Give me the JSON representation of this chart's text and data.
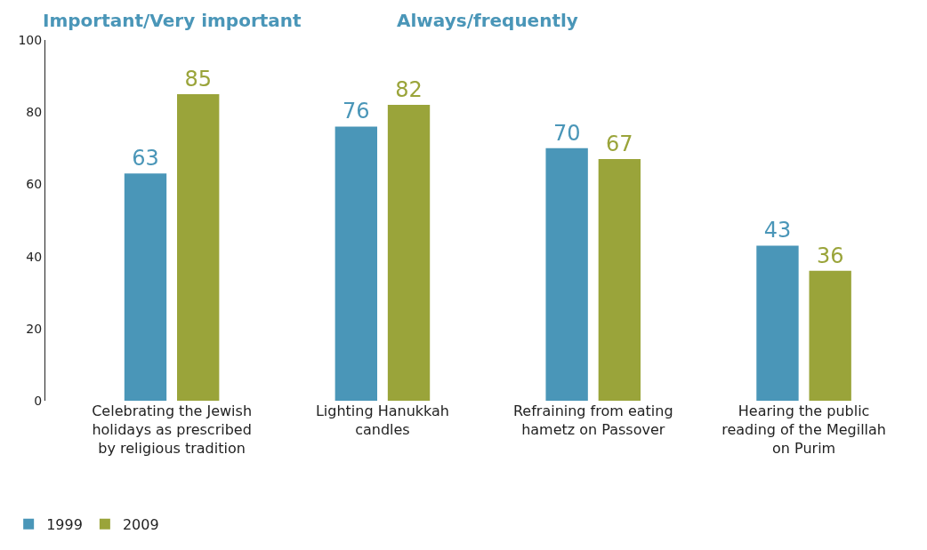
{
  "chart_data": {
    "type": "bar",
    "categories": [
      "Celebrating the Jewish holidays as prescribed by religious tradition",
      "Lighting Hanukkah candles",
      "Refraining from eating hametz on Passover",
      "Hearing the public reading of the Megillah on Purim"
    ],
    "series": [
      {
        "name": "1999",
        "color": "#4a96b8",
        "values": [
          63,
          76,
          70,
          43
        ]
      },
      {
        "name": "2009",
        "color": "#9aa43a",
        "values": [
          85,
          82,
          67,
          36
        ]
      }
    ],
    "annotations": [
      "Important/Very important",
      "Always/frequently"
    ],
    "ylim": [
      0,
      100
    ],
    "yticks": [
      0,
      20,
      40,
      60,
      80,
      100
    ],
    "grid": false,
    "legend": "bottom left",
    "data_labels": true
  }
}
